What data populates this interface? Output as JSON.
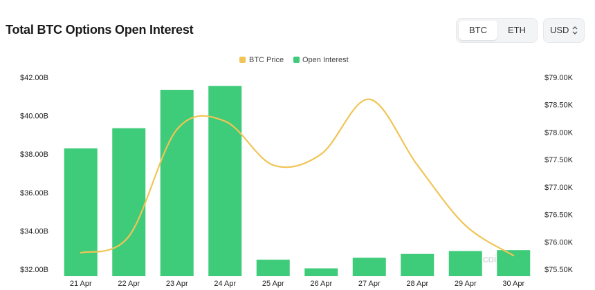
{
  "header": {
    "title": "Total BTC Options Open Interest",
    "coin_options": [
      "BTC",
      "ETH"
    ],
    "active_coin": "BTC",
    "currency": "USD"
  },
  "watermark": "coinglass",
  "colors": {
    "bar": "#3ecb7a",
    "line": "#f0c556",
    "grid": "#ececec"
  },
  "chart_data": {
    "type": "bar",
    "title": "Total BTC Options Open Interest",
    "categories": [
      "21 Apr",
      "22 Apr",
      "23 Apr",
      "24 Apr",
      "25 Apr",
      "26 Apr",
      "27 Apr",
      "28 Apr",
      "29 Apr",
      "30 Apr"
    ],
    "series": [
      {
        "name": "Open Interest",
        "type": "bar",
        "axis": "left",
        "unit": "B",
        "values": [
          38.3,
          39.35,
          41.35,
          41.55,
          32.5,
          32.05,
          32.6,
          32.8,
          32.95,
          33.0
        ]
      },
      {
        "name": "BTC Price",
        "type": "line",
        "axis": "right",
        "unit": "K",
        "values": [
          75.8,
          76.1,
          78.05,
          78.2,
          77.4,
          77.6,
          78.6,
          77.4,
          76.3,
          75.75
        ]
      }
    ],
    "y_left": {
      "ticks": [
        "$42.00B",
        "$40.00B",
        "$38.00B",
        "$36.00B",
        "$34.00B",
        "$32.00B"
      ],
      "range": [
        32,
        42
      ]
    },
    "y_right": {
      "ticks": [
        "$79.00K",
        "$78.50K",
        "$78.00K",
        "$77.50K",
        "$77.00K",
        "$76.50K",
        "$76.00K",
        "$75.50K"
      ],
      "range": [
        75.5,
        79
      ]
    },
    "legend": [
      "BTC Price",
      "Open Interest"
    ],
    "legend_position": "top-center",
    "grid": false
  }
}
